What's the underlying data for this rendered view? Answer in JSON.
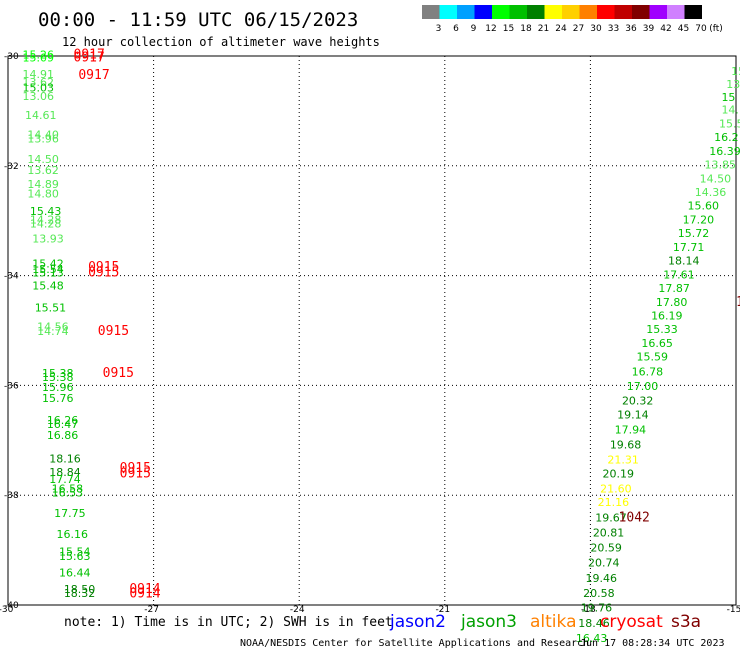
{
  "header": {
    "title": "00:00 - 11:59 UTC 06/15/2023",
    "subtitle": "12 hour collection of altimeter wave heights"
  },
  "legend": {
    "unit": "(ft)",
    "bins": [
      {
        "label": "3",
        "color": "#808080"
      },
      {
        "label": "6",
        "color": "#00ffff"
      },
      {
        "label": "9",
        "color": "#00a0ff"
      },
      {
        "label": "12",
        "color": "#0000ff"
      },
      {
        "label": "15",
        "color": "#00ff00"
      },
      {
        "label": "18",
        "color": "#00c000"
      },
      {
        "label": "21",
        "color": "#008000"
      },
      {
        "label": "24",
        "color": "#ffff00"
      },
      {
        "label": "27",
        "color": "#ffd000"
      },
      {
        "label": "30",
        "color": "#ff8000"
      },
      {
        "label": "33",
        "color": "#ff0000"
      },
      {
        "label": "36",
        "color": "#c00000"
      },
      {
        "label": "39",
        "color": "#800000"
      },
      {
        "label": "42",
        "color": "#a000ff"
      },
      {
        "label": "45",
        "color": "#d080ff"
      },
      {
        "label": "70",
        "color": "#000000"
      }
    ]
  },
  "footer": {
    "note": "note: 1) Time is in UTC; 2) SWH is in feet",
    "credit": "NOAA/NESDIS Center for Satellite Applications and Research",
    "timestamp": "Jun 17 08:28:34 UTC 2023"
  },
  "satellites": [
    {
      "name": "jason2",
      "color": "#0000ff"
    },
    {
      "name": "jason3",
      "color": "#00a000"
    },
    {
      "name": "altika",
      "color": "#ff8000"
    },
    {
      "name": "cryosat",
      "color": "#ff0000"
    },
    {
      "name": "s3a",
      "color": "#800000"
    }
  ],
  "chart_data": {
    "type": "scatter",
    "x_ticks": [
      "-30",
      "-27",
      "-24",
      "-21",
      "-18",
      "-15"
    ],
    "y_ticks": [
      "-30",
      "-32",
      "-34",
      "-36",
      "-38",
      "-40"
    ],
    "xlim": [
      -30,
      -15
    ],
    "ylim": [
      -40,
      -30
    ],
    "grid": true,
    "points": [
      {
        "lon": -29.7,
        "lat": -30.05,
        "v": "15.26",
        "c": "#00ff00"
      },
      {
        "lon": -29.7,
        "lat": -30.1,
        "v": "15.09",
        "c": "#00ff00"
      },
      {
        "lon": -29.7,
        "lat": -30.4,
        "v": "14.91",
        "c": "#55e855"
      },
      {
        "lon": -29.7,
        "lat": -30.55,
        "v": "13.62",
        "c": "#55e855"
      },
      {
        "lon": -29.7,
        "lat": -30.65,
        "v": "15.03",
        "c": "#00c000"
      },
      {
        "lon": -29.7,
        "lat": -30.8,
        "v": "13.06",
        "c": "#55e855"
      },
      {
        "lon": -29.65,
        "lat": -31.15,
        "v": "14.61",
        "c": "#55e855"
      },
      {
        "lon": -29.6,
        "lat": -31.5,
        "v": "14.40",
        "c": "#55e855"
      },
      {
        "lon": -29.6,
        "lat": -31.58,
        "v": "13.96",
        "c": "#55e855"
      },
      {
        "lon": -29.6,
        "lat": -31.95,
        "v": "14.50",
        "c": "#55e855"
      },
      {
        "lon": -29.6,
        "lat": -32.15,
        "v": "13.62",
        "c": "#55e855"
      },
      {
        "lon": -29.6,
        "lat": -32.4,
        "v": "14.89",
        "c": "#55e855"
      },
      {
        "lon": -29.6,
        "lat": -32.58,
        "v": "14.80",
        "c": "#55e855"
      },
      {
        "lon": -29.55,
        "lat": -32.9,
        "v": "15.43",
        "c": "#00c000"
      },
      {
        "lon": -29.55,
        "lat": -33.05,
        "v": "14.28",
        "c": "#55e855"
      },
      {
        "lon": -29.55,
        "lat": -33.12,
        "v": "14.28",
        "c": "#55e855"
      },
      {
        "lon": -29.5,
        "lat": -33.4,
        "v": "13.93",
        "c": "#55e855"
      },
      {
        "lon": -29.5,
        "lat": -33.85,
        "v": "15.42",
        "c": "#00c000"
      },
      {
        "lon": -29.5,
        "lat": -33.95,
        "v": "15.54",
        "c": "#00c000"
      },
      {
        "lon": -29.5,
        "lat": -34.02,
        "v": "15.13",
        "c": "#00c000"
      },
      {
        "lon": -29.5,
        "lat": -34.25,
        "v": "15.48",
        "c": "#00c000"
      },
      {
        "lon": -29.45,
        "lat": -34.65,
        "v": "15.51",
        "c": "#00c000"
      },
      {
        "lon": -29.4,
        "lat": -35.0,
        "v": "14.56",
        "c": "#55e855"
      },
      {
        "lon": -29.4,
        "lat": -35.08,
        "v": "14.74",
        "c": "#55e855"
      },
      {
        "lon": -29.3,
        "lat": -35.85,
        "v": "15.38",
        "c": "#00c000"
      },
      {
        "lon": -29.3,
        "lat": -35.92,
        "v": "15.38",
        "c": "#00c000"
      },
      {
        "lon": -29.3,
        "lat": -36.1,
        "v": "15.96",
        "c": "#00c000"
      },
      {
        "lon": -29.3,
        "lat": -36.3,
        "v": "15.76",
        "c": "#00c000"
      },
      {
        "lon": -29.2,
        "lat": -36.7,
        "v": "16.26",
        "c": "#00c000"
      },
      {
        "lon": -29.2,
        "lat": -36.78,
        "v": "16.47",
        "c": "#00c000"
      },
      {
        "lon": -29.2,
        "lat": -36.98,
        "v": "16.86",
        "c": "#00c000"
      },
      {
        "lon": -29.15,
        "lat": -37.4,
        "v": "18.16",
        "c": "#008000"
      },
      {
        "lon": -29.15,
        "lat": -37.65,
        "v": "18.84",
        "c": "#008000"
      },
      {
        "lon": -29.15,
        "lat": -37.78,
        "v": "17.74",
        "c": "#00c000"
      },
      {
        "lon": -29.1,
        "lat": -37.95,
        "v": "16.58",
        "c": "#00c000"
      },
      {
        "lon": -29.1,
        "lat": -38.02,
        "v": "16.53",
        "c": "#00c000"
      },
      {
        "lon": -29.05,
        "lat": -38.4,
        "v": "17.75",
        "c": "#00c000"
      },
      {
        "lon": -29.0,
        "lat": -38.78,
        "v": "16.16",
        "c": "#00c000"
      },
      {
        "lon": -28.95,
        "lat": -39.1,
        "v": "15.54",
        "c": "#00c000"
      },
      {
        "lon": -28.95,
        "lat": -39.18,
        "v": "15.63",
        "c": "#00c000"
      },
      {
        "lon": -28.95,
        "lat": -39.48,
        "v": "16.44",
        "c": "#00c000"
      },
      {
        "lon": -28.85,
        "lat": -39.78,
        "v": "18.50",
        "c": "#008000"
      },
      {
        "lon": -28.85,
        "lat": -39.85,
        "v": "18.32",
        "c": "#008000"
      },
      {
        "lon": -15.1,
        "lat": -30.35,
        "v": "15",
        "c": "#55e855"
      },
      {
        "lon": -15.2,
        "lat": -30.58,
        "v": "13.",
        "c": "#55e855"
      },
      {
        "lon": -15.3,
        "lat": -30.82,
        "v": "15",
        "c": "#00c000"
      },
      {
        "lon": -15.3,
        "lat": -31.05,
        "v": "14.",
        "c": "#55e855"
      },
      {
        "lon": -15.35,
        "lat": -31.3,
        "v": "15.5",
        "c": "#55e855"
      },
      {
        "lon": -15.45,
        "lat": -31.55,
        "v": "16.2",
        "c": "#00c000"
      },
      {
        "lon": -15.55,
        "lat": -31.8,
        "v": "16.39",
        "c": "#00c000"
      },
      {
        "lon": -15.65,
        "lat": -32.05,
        "v": "13.85",
        "c": "#55e855"
      },
      {
        "lon": -15.75,
        "lat": -32.3,
        "v": "14.50",
        "c": "#55e855"
      },
      {
        "lon": -15.85,
        "lat": -32.55,
        "v": "14.36",
        "c": "#55e855"
      },
      {
        "lon": -16.0,
        "lat": -32.8,
        "v": "15.60",
        "c": "#00c000"
      },
      {
        "lon": -16.1,
        "lat": -33.05,
        "v": "17.20",
        "c": "#00c000"
      },
      {
        "lon": -16.2,
        "lat": -33.3,
        "v": "15.72",
        "c": "#00c000"
      },
      {
        "lon": -16.3,
        "lat": -33.55,
        "v": "17.71",
        "c": "#00c000"
      },
      {
        "lon": -16.4,
        "lat": -33.8,
        "v": "18.14",
        "c": "#008000"
      },
      {
        "lon": -16.5,
        "lat": -34.05,
        "v": "17.61",
        "c": "#00c000"
      },
      {
        "lon": -16.6,
        "lat": -34.3,
        "v": "17.87",
        "c": "#00c000"
      },
      {
        "lon": -16.65,
        "lat": -34.55,
        "v": "17.80",
        "c": "#00c000"
      },
      {
        "lon": -16.75,
        "lat": -34.8,
        "v": "16.19",
        "c": "#00c000"
      },
      {
        "lon": -16.85,
        "lat": -35.05,
        "v": "15.33",
        "c": "#00c000"
      },
      {
        "lon": -16.95,
        "lat": -35.3,
        "v": "16.65",
        "c": "#00c000"
      },
      {
        "lon": -17.05,
        "lat": -35.55,
        "v": "15.59",
        "c": "#00c000"
      },
      {
        "lon": -17.15,
        "lat": -35.82,
        "v": "16.78",
        "c": "#00c000"
      },
      {
        "lon": -17.25,
        "lat": -36.08,
        "v": "17.00",
        "c": "#00c000"
      },
      {
        "lon": -17.35,
        "lat": -36.35,
        "v": "20.32",
        "c": "#008000"
      },
      {
        "lon": -17.45,
        "lat": -36.6,
        "v": "19.14",
        "c": "#008000"
      },
      {
        "lon": -17.5,
        "lat": -36.88,
        "v": "17.94",
        "c": "#00c000"
      },
      {
        "lon": -17.6,
        "lat": -37.15,
        "v": "19.68",
        "c": "#008000"
      },
      {
        "lon": -17.65,
        "lat": -37.42,
        "v": "21.31",
        "c": "#ffff00"
      },
      {
        "lon": -17.75,
        "lat": -37.68,
        "v": "20.19",
        "c": "#008000"
      },
      {
        "lon": -17.8,
        "lat": -37.95,
        "v": "21.60",
        "c": "#ffff00"
      },
      {
        "lon": -17.85,
        "lat": -38.2,
        "v": "21.16",
        "c": "#ffff00"
      },
      {
        "lon": -17.9,
        "lat": -38.48,
        "v": "19.67",
        "c": "#008000"
      },
      {
        "lon": -17.95,
        "lat": -38.75,
        "v": "20.81",
        "c": "#008000"
      },
      {
        "lon": -18.0,
        "lat": -39.03,
        "v": "20.59",
        "c": "#008000"
      },
      {
        "lon": -18.05,
        "lat": -39.3,
        "v": "20.74",
        "c": "#008000"
      },
      {
        "lon": -18.1,
        "lat": -39.58,
        "v": "19.46",
        "c": "#008000"
      },
      {
        "lon": -18.15,
        "lat": -39.85,
        "v": "20.58",
        "c": "#008000"
      },
      {
        "lon": -18.2,
        "lat": -40.12,
        "v": "19.76",
        "c": "#008000"
      },
      {
        "lon": -18.25,
        "lat": -40.4,
        "v": "18.46",
        "c": "#008000"
      },
      {
        "lon": -18.3,
        "lat": -40.67,
        "v": "16.43",
        "c": "#00c000"
      }
    ],
    "pass_times": [
      {
        "lon": -28.65,
        "lat": -30.05,
        "t": "0917",
        "c": "#ff0000"
      },
      {
        "lon": -28.65,
        "lat": -30.1,
        "t": "0917",
        "c": "#ff0000"
      },
      {
        "lon": -28.55,
        "lat": -30.42,
        "t": "0917",
        "c": "#ff0000"
      },
      {
        "lon": -28.35,
        "lat": -33.92,
        "t": "0915",
        "c": "#ff0000"
      },
      {
        "lon": -28.35,
        "lat": -34.02,
        "t": "0915",
        "c": "#ff0000"
      },
      {
        "lon": -28.15,
        "lat": -35.08,
        "t": "0915",
        "c": "#ff0000"
      },
      {
        "lon": -28.05,
        "lat": -35.85,
        "t": "0915",
        "c": "#ff0000"
      },
      {
        "lon": -27.7,
        "lat": -37.58,
        "t": "0915",
        "c": "#ff0000"
      },
      {
        "lon": -27.7,
        "lat": -37.68,
        "t": "0915",
        "c": "#ff0000"
      },
      {
        "lon": -27.5,
        "lat": -39.78,
        "t": "0914",
        "c": "#ff0000"
      },
      {
        "lon": -27.5,
        "lat": -39.86,
        "t": "0914",
        "c": "#ff0000"
      },
      {
        "lon": -15.0,
        "lat": -34.55,
        "t": "104",
        "c": "#800000"
      },
      {
        "lon": -17.42,
        "lat": -38.48,
        "t": "1042",
        "c": "#800000"
      }
    ]
  }
}
